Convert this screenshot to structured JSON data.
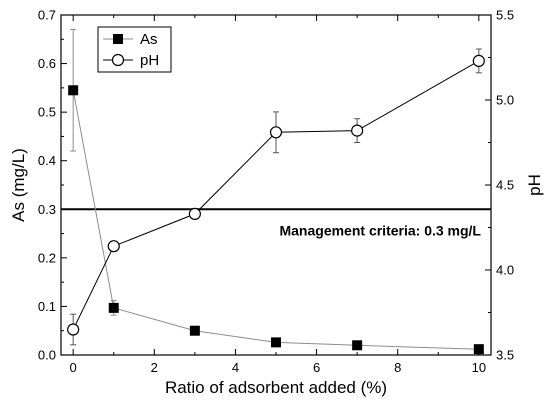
{
  "chart_data": {
    "type": "line",
    "xlabel": "Ratio of adsorbent added (%)",
    "ylabel_left": "As (mg/L)",
    "ylabel_right": "pH",
    "xlim": [
      -0.3,
      10.3
    ],
    "ylim_left": [
      0.0,
      0.7
    ],
    "ylim_right": [
      3.5,
      5.5
    ],
    "x_ticks": [
      0,
      2,
      4,
      6,
      8,
      10
    ],
    "y_left_ticks": [
      0.0,
      0.1,
      0.2,
      0.3,
      0.4,
      0.5,
      0.6,
      0.7
    ],
    "y_right_ticks": [
      3.5,
      4.0,
      4.5,
      5.0,
      5.5
    ],
    "legend_position": "top-left",
    "grid": false,
    "series": [
      {
        "name": "As",
        "axis": "left",
        "marker": "filled-square",
        "line_color": "#8c8c8c",
        "x": [
          0,
          1,
          3,
          5,
          7,
          10
        ],
        "y": [
          0.545,
          0.097,
          0.05,
          0.026,
          0.02,
          0.012
        ],
        "err": [
          0.125,
          0.015,
          0.004,
          0.003,
          0.002,
          0.002
        ]
      },
      {
        "name": "pH",
        "axis": "right",
        "marker": "open-circle",
        "line_color": "#000000",
        "x": [
          0,
          1,
          3,
          5,
          7,
          10
        ],
        "y": [
          3.65,
          4.14,
          4.33,
          4.81,
          4.82,
          5.23
        ],
        "err": [
          0.09,
          0.03,
          0.03,
          0.12,
          0.07,
          0.07
        ]
      }
    ],
    "reference_line": {
      "axis": "left",
      "value": 0.3,
      "label": "Management criteria: 0.3 mg/L"
    }
  }
}
